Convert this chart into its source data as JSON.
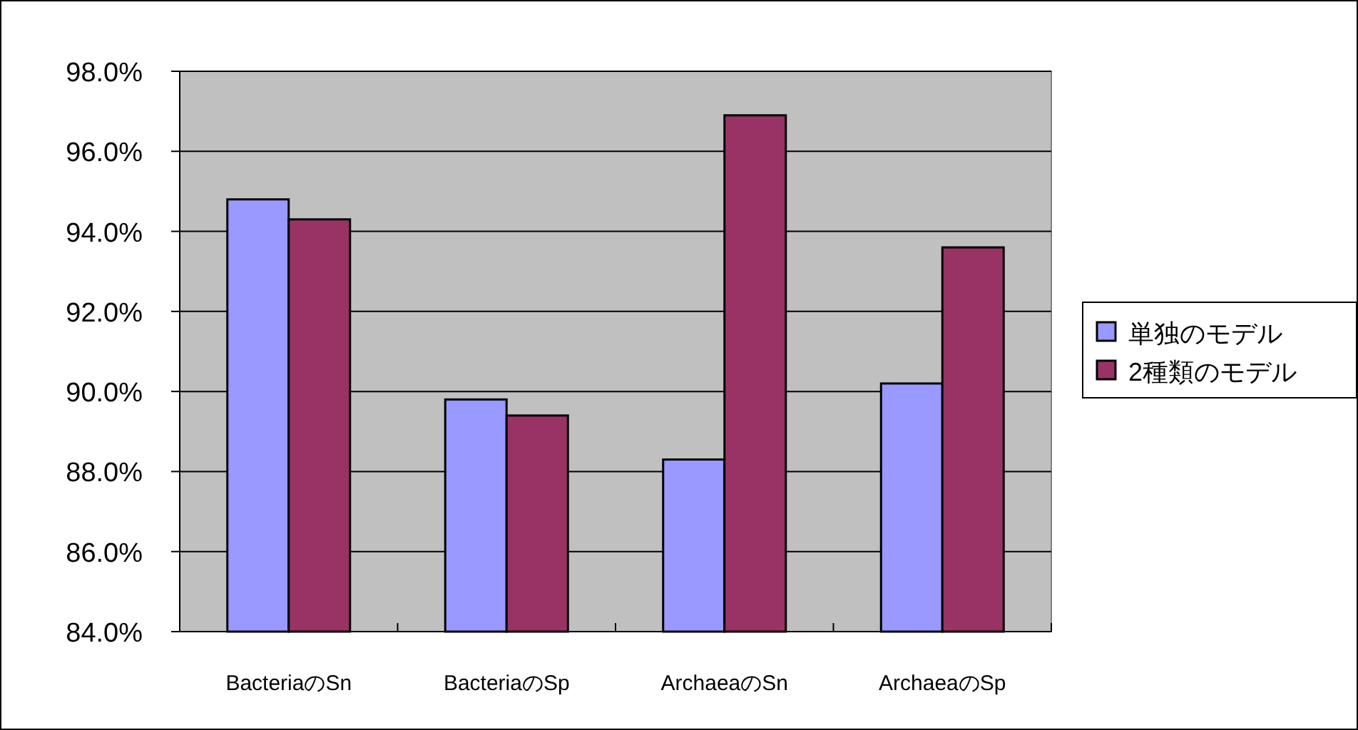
{
  "chart_data": {
    "type": "bar",
    "categories": [
      "BacteriaのSn",
      "BacteriaのSp",
      "ArchaeaのSn",
      "ArchaeaのSp"
    ],
    "series": [
      {
        "name": "単独のモデル",
        "color": "#9999ff",
        "values": [
          94.8,
          89.8,
          88.3,
          90.2
        ]
      },
      {
        "name": "2種類のモデル",
        "color": "#993366",
        "values": [
          94.3,
          89.4,
          96.9,
          93.6
        ]
      }
    ],
    "ylim": [
      84,
      98
    ],
    "yticks": [
      {
        "value": 84,
        "label": "84.0%"
      },
      {
        "value": 86,
        "label": "86.0%"
      },
      {
        "value": 88,
        "label": "88.0%"
      },
      {
        "value": 90,
        "label": "90.0%"
      },
      {
        "value": 92,
        "label": "92.0%"
      },
      {
        "value": 94,
        "label": "94.0%"
      },
      {
        "value": 96,
        "label": "96.0%"
      },
      {
        "value": 98,
        "label": "98.0%"
      }
    ],
    "grid": "y",
    "legend": "right"
  }
}
